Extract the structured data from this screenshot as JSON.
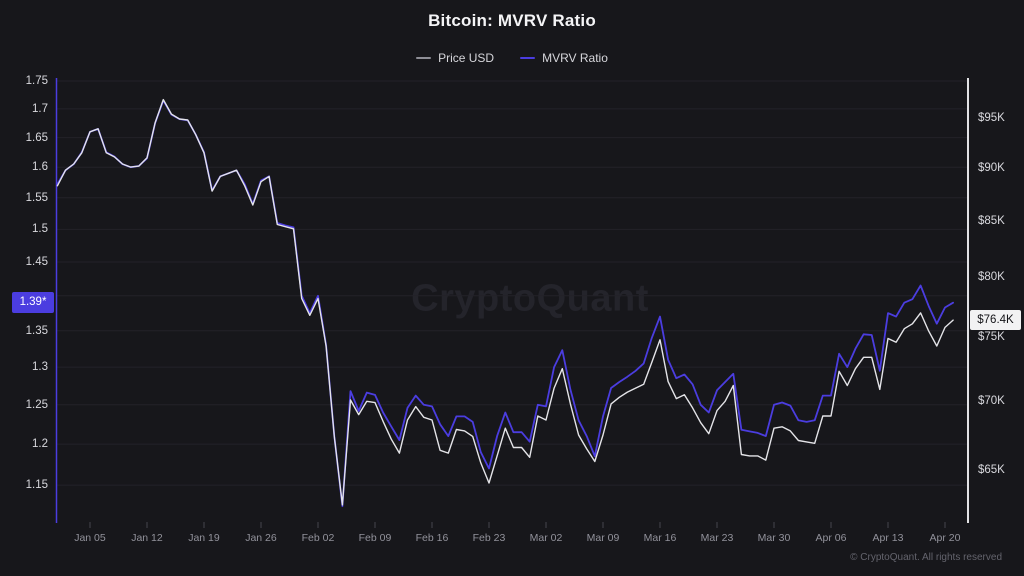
{
  "header": {
    "title": "Bitcoin: MVRV Ratio"
  },
  "legend": [
    {
      "label": "Price USD",
      "color": "#8e8e96"
    },
    {
      "label": "MVRV Ratio",
      "color": "#4b3de0"
    }
  ],
  "watermark": "CryptoQuant",
  "footer": {
    "copyright": "© CryptoQuant. All rights reserved"
  },
  "annotations": {
    "left_badge": "1.39*",
    "left_value": 1.39,
    "right_badge": "$76.4K",
    "right_value": 76.4
  },
  "chart_data": {
    "type": "line",
    "title": "Bitcoin: MVRV Ratio",
    "grid": "horizontal",
    "legend_position": "top",
    "x_range": {
      "start": "Jan 01",
      "end": "Apr 21",
      "step": "1 day"
    },
    "x_tick_labels": [
      "Jan 05",
      "Jan 12",
      "Jan 19",
      "Jan 26",
      "Feb 02",
      "Feb 09",
      "Feb 16",
      "Feb 23",
      "Mar 02",
      "Mar 09",
      "Mar 16",
      "Mar 23",
      "Mar 30",
      "Apr 06",
      "Apr 13",
      "Apr 20"
    ],
    "left_axis": {
      "scale": "log",
      "series": "MVRV Ratio",
      "ticks": [
        1.75,
        1.7,
        1.65,
        1.6,
        1.55,
        1.5,
        1.45,
        1.4,
        1.35,
        1.3,
        1.25,
        1.2,
        1.15
      ],
      "visible_tick_labels": [
        "1.75",
        "1.7",
        "1.65",
        "1.6",
        "1.55",
        "1.5",
        "1.45",
        "1.35",
        "1.3",
        "1.25",
        "1.2",
        "1.15"
      ],
      "current_value_label": "1.39*"
    },
    "right_axis": {
      "scale": "log",
      "series": "Price USD",
      "ticks_k_usd": [
        95,
        90,
        85,
        80,
        75,
        70,
        65
      ],
      "tick_labels": [
        "$95K",
        "$90K",
        "$85K",
        "$80K",
        "$75K",
        "$70K",
        "$65K"
      ],
      "current_value_label": "$76.4K"
    },
    "series": [
      {
        "name": "Price USD",
        "axis": "right",
        "unit": "thousand USD",
        "color": "#e4e4e8",
        "values": [
          88.3,
          89.8,
          90.4,
          91.5,
          93.6,
          93.9,
          91.5,
          91.1,
          90.4,
          90.1,
          90.2,
          91.0,
          94.5,
          96.9,
          95.4,
          94.9,
          94.8,
          93.3,
          91.5,
          87.8,
          89.2,
          89.5,
          89.8,
          88.3,
          86.5,
          88.7,
          89.2,
          84.7,
          84.5,
          84.3,
          78.2,
          76.8,
          78.2,
          74.3,
          67.4,
          62.6,
          70.1,
          69.0,
          70.0,
          69.9,
          68.5,
          67.2,
          66.2,
          68.6,
          69.6,
          68.8,
          68.6,
          66.4,
          66.2,
          67.9,
          67.8,
          67.4,
          65.5,
          64.1,
          66.0,
          68.0,
          66.6,
          66.6,
          65.9,
          68.9,
          68.6,
          71.0,
          72.5,
          69.8,
          67.5,
          66.5,
          65.6,
          67.5,
          69.8,
          70.3,
          70.7,
          71.0,
          71.3,
          73.0,
          74.8,
          71.5,
          70.2,
          70.5,
          69.5,
          68.4,
          67.6,
          69.3,
          70.0,
          71.2,
          66.1,
          66.0,
          66.0,
          65.7,
          68.0,
          68.1,
          67.8,
          67.1,
          67.0,
          66.9,
          68.9,
          68.9,
          72.3,
          71.2,
          72.5,
          73.4,
          73.4,
          70.9,
          74.9,
          74.6,
          75.7,
          76.1,
          77.0,
          75.5,
          74.3,
          75.8,
          76.4
        ]
      },
      {
        "name": "MVRV Ratio",
        "axis": "left",
        "unit": "ratio",
        "color": "#4b3de0",
        "values": [
          1.572,
          1.595,
          1.605,
          1.625,
          1.66,
          1.665,
          1.625,
          1.618,
          1.605,
          1.6,
          1.602,
          1.615,
          1.675,
          1.715,
          1.69,
          1.682,
          1.68,
          1.655,
          1.625,
          1.562,
          1.585,
          1.59,
          1.595,
          1.572,
          1.54,
          1.578,
          1.585,
          1.51,
          1.506,
          1.503,
          1.4,
          1.375,
          1.4,
          1.33,
          1.21,
          1.125,
          1.268,
          1.242,
          1.266,
          1.263,
          1.24,
          1.222,
          1.205,
          1.246,
          1.262,
          1.25,
          1.248,
          1.225,
          1.21,
          1.235,
          1.235,
          1.228,
          1.19,
          1.17,
          1.21,
          1.24,
          1.215,
          1.215,
          1.203,
          1.25,
          1.248,
          1.3,
          1.323,
          1.27,
          1.23,
          1.21,
          1.185,
          1.235,
          1.272,
          1.28,
          1.287,
          1.295,
          1.305,
          1.34,
          1.37,
          1.31,
          1.285,
          1.29,
          1.277,
          1.25,
          1.24,
          1.269,
          1.28,
          1.291,
          1.218,
          1.216,
          1.214,
          1.21,
          1.25,
          1.253,
          1.249,
          1.23,
          1.228,
          1.23,
          1.262,
          1.262,
          1.318,
          1.3,
          1.325,
          1.345,
          1.344,
          1.295,
          1.375,
          1.37,
          1.39,
          1.395,
          1.415,
          1.385,
          1.36,
          1.383,
          1.39
        ]
      }
    ]
  }
}
